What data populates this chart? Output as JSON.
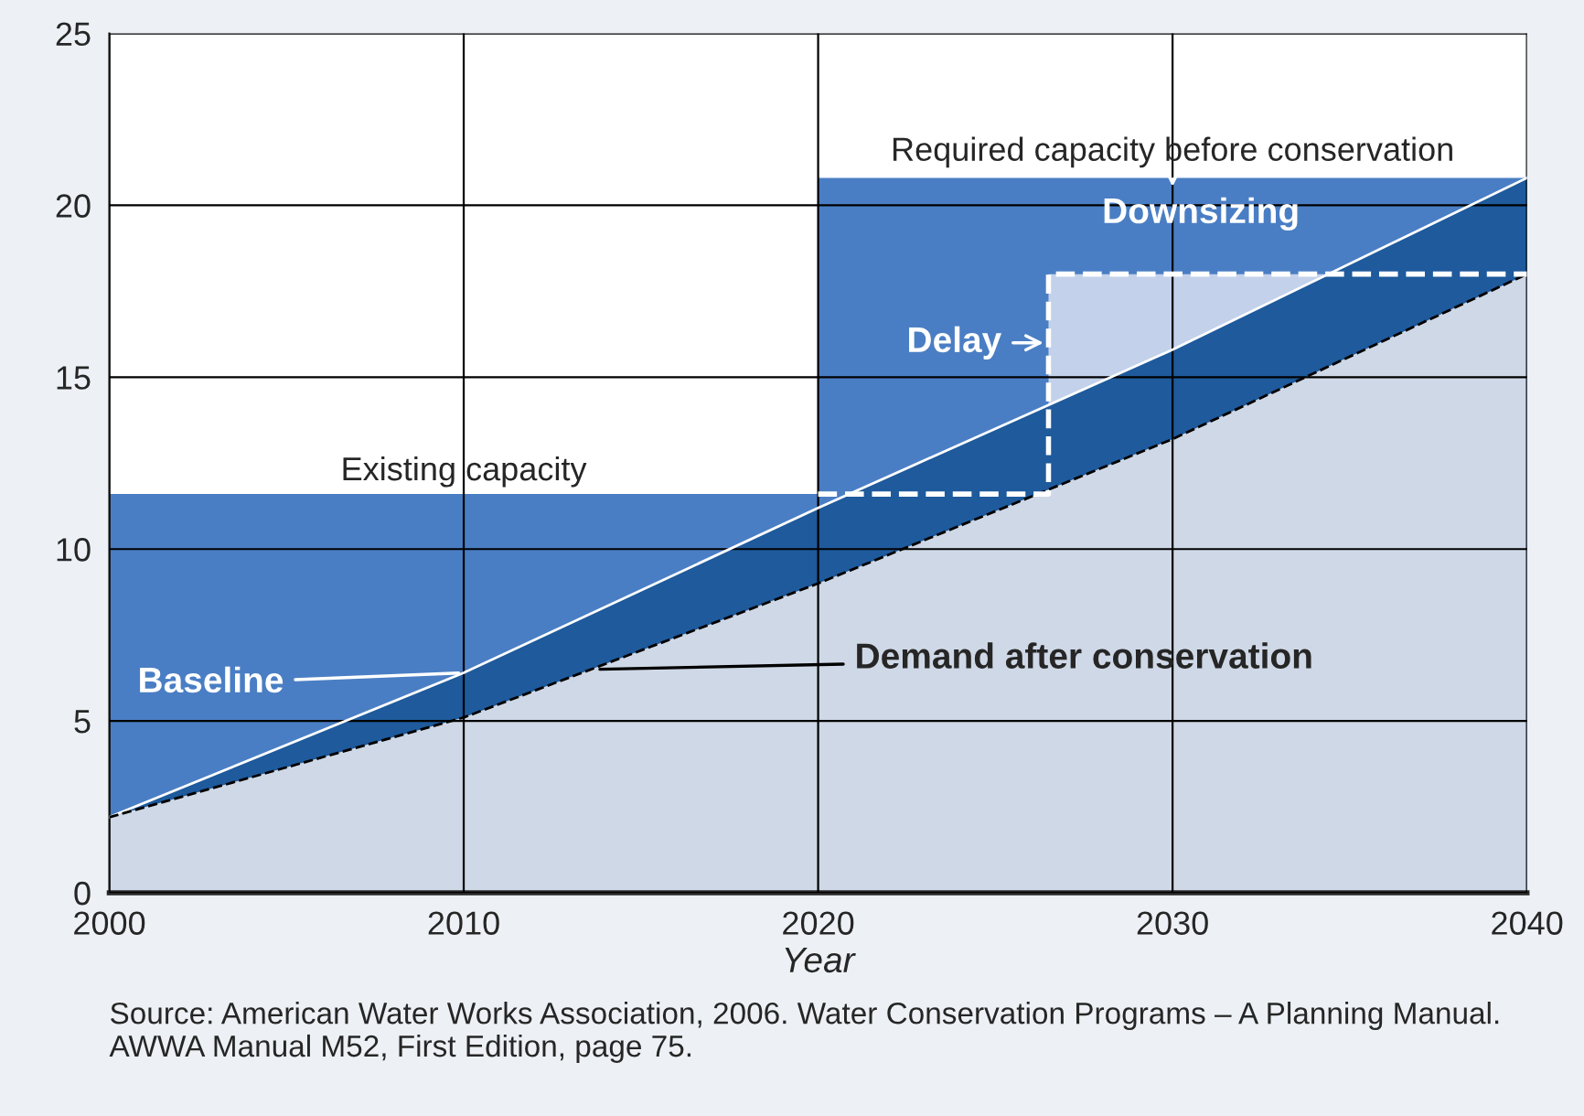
{
  "chart_data": {
    "type": "area",
    "xlabel": "Year",
    "xlim": [
      2000,
      2040
    ],
    "xticks": [
      2000,
      2010,
      2020,
      2030,
      2040
    ],
    "ylim": [
      0,
      25
    ],
    "yticks": [
      0,
      5,
      10,
      15,
      20,
      25
    ],
    "grid": true,
    "series": [
      {
        "color": "#4a7ec4",
        "x": [
          2000,
          2020
        ],
        "values": [
          11.6,
          11.6
        ]
      },
      {
        "color": "#4a7ec4",
        "x": [
          2020,
          2040
        ],
        "values": [
          20.8,
          20.8
        ]
      },
      {
        "color": "#c3d1ea",
        "x": [
          2026.5,
          2040
        ],
        "values": [
          18,
          18
        ]
      },
      {
        "type": "line",
        "color": "#ffffff",
        "line_style": "dashed",
        "x": [
          2020,
          2026.5,
          2026.5,
          2040
        ],
        "values": [
          11.6,
          11.6,
          18,
          18
        ]
      },
      {
        "name": "Baseline",
        "color": "#1e5a9c",
        "x": [
          2000,
          2010,
          2020,
          2030,
          2040
        ],
        "values": [
          2.2,
          6.4,
          11.2,
          15.8,
          20.8
        ]
      },
      {
        "name": "Demand after conservation",
        "color": "#cfd8e6",
        "line_style": "dashed",
        "x": [
          2000,
          2010,
          2020,
          2030,
          2040
        ],
        "values": [
          2.2,
          5.1,
          9.0,
          13.2,
          18.0
        ]
      }
    ],
    "annotations": [
      {
        "text": "Existing capacity",
        "x": 2010,
        "y": 11.6
      },
      {
        "text": "Required capacity before conservation",
        "x": 2030,
        "y": 20.8
      },
      {
        "text": "Delay",
        "x": 2026.5,
        "y": 16
      },
      "Downsizing",
      "Source: American Water Works Association, 2006. Water Conservation Programs – A Planning Manual. AWWA Manual M52, First Edition, page 75."
    ]
  }
}
